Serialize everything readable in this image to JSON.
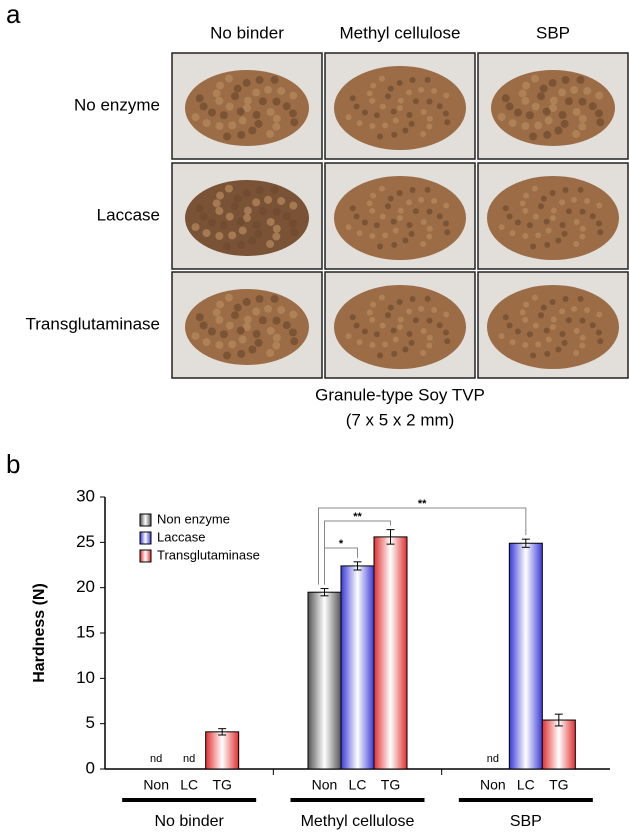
{
  "panel_a": {
    "label": "a",
    "columns": [
      "No binder",
      "Methyl cellulose",
      "SBP"
    ],
    "rows": [
      "No enzyme",
      "Laccase",
      "Transglutaminase"
    ],
    "caption": [
      "Granule-type Soy TVP",
      "(7 x 5 x 2 mm)"
    ]
  },
  "panel_b": {
    "label": "b"
  },
  "chart_data": {
    "type": "bar",
    "y_label": "Hardness (N)",
    "groups": [
      "No binder",
      "Methyl cellulose",
      "SBP"
    ],
    "bar_labels": [
      "Non",
      "LC",
      "TG"
    ],
    "ylim": [
      0,
      30
    ],
    "yticks": [
      0,
      5,
      10,
      15,
      20,
      25,
      30
    ],
    "series": [
      {
        "name": "Non enzyme",
        "color": "#555555",
        "values": [
          null,
          19.5,
          null
        ],
        "errors": [
          null,
          0.4,
          null
        ],
        "value_labels": [
          "nd",
          null,
          "nd"
        ]
      },
      {
        "name": "Laccase",
        "color": "#3a3ad8",
        "values": [
          null,
          22.4,
          24.9
        ],
        "errors": [
          null,
          0.45,
          0.45
        ],
        "value_labels": [
          "nd",
          null,
          null
        ]
      },
      {
        "name": "Transglutaminase",
        "color": "#e03030",
        "values": [
          4.1,
          25.6,
          5.4
        ],
        "errors": [
          0.35,
          0.8,
          0.65
        ]
      }
    ],
    "significance": [
      {
        "label": "*"
      },
      {
        "label": "**"
      },
      {
        "label": "**"
      }
    ],
    "legend": "top-left"
  }
}
